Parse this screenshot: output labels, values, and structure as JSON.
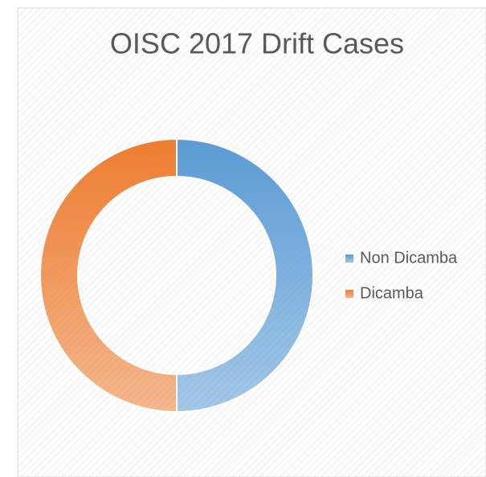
{
  "chart_data": {
    "type": "donut",
    "title": "OISC 2017 Drift Cases",
    "categories": [
      "Non Dicamba",
      "Dicamba"
    ],
    "values": [
      50,
      50
    ],
    "colors": [
      "#5b9bd5",
      "#ed7d31"
    ],
    "legend": "right"
  }
}
